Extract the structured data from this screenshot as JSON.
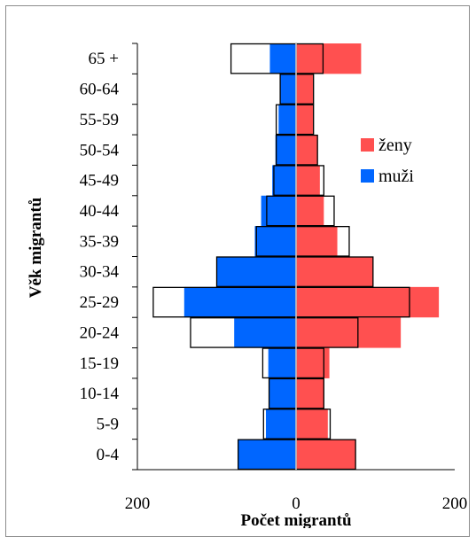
{
  "chart_data": {
    "type": "bar",
    "orientation": "horizontal",
    "subtype": "population-pyramid",
    "title": "",
    "xlabel": "Počet migrantů",
    "ylabel": "Věk migrantů",
    "categories": [
      "0-4",
      "5-9",
      "10-14",
      "15-19",
      "20-24",
      "25-29",
      "30-34",
      "35-39",
      "40-44",
      "45-49",
      "50-54",
      "55-59",
      "60-64",
      "65 +"
    ],
    "x_tick_labels": [
      "200",
      "0",
      "200"
    ],
    "xlim": [
      -200,
      200
    ],
    "series": [
      {
        "name": "ženy",
        "side": "right",
        "color": "#ff5050",
        "values": [
          75,
          40,
          35,
          42,
          132,
          180,
          97,
          52,
          35,
          30,
          27,
          22,
          22,
          82
        ]
      },
      {
        "name": "muži",
        "side": "left",
        "color": "#0066ff",
        "values": [
          73,
          38,
          34,
          35,
          78,
          141,
          100,
          52,
          44,
          30,
          26,
          22,
          20,
          33
        ]
      },
      {
        "role": "outline",
        "side": "right",
        "values": [
          75,
          43,
          35,
          35,
          78,
          143,
          97,
          67,
          48,
          35,
          27,
          22,
          22,
          34
        ]
      },
      {
        "role": "outline",
        "side": "left",
        "values": [
          73,
          41,
          34,
          42,
          133,
          180,
          100,
          50,
          37,
          28,
          25,
          25,
          20,
          82
        ]
      }
    ],
    "legend": {
      "placement": "right",
      "entries": [
        {
          "label": "ženy",
          "color": "#ff5050"
        },
        {
          "label": "muži",
          "color": "#0066ff"
        }
      ]
    }
  }
}
